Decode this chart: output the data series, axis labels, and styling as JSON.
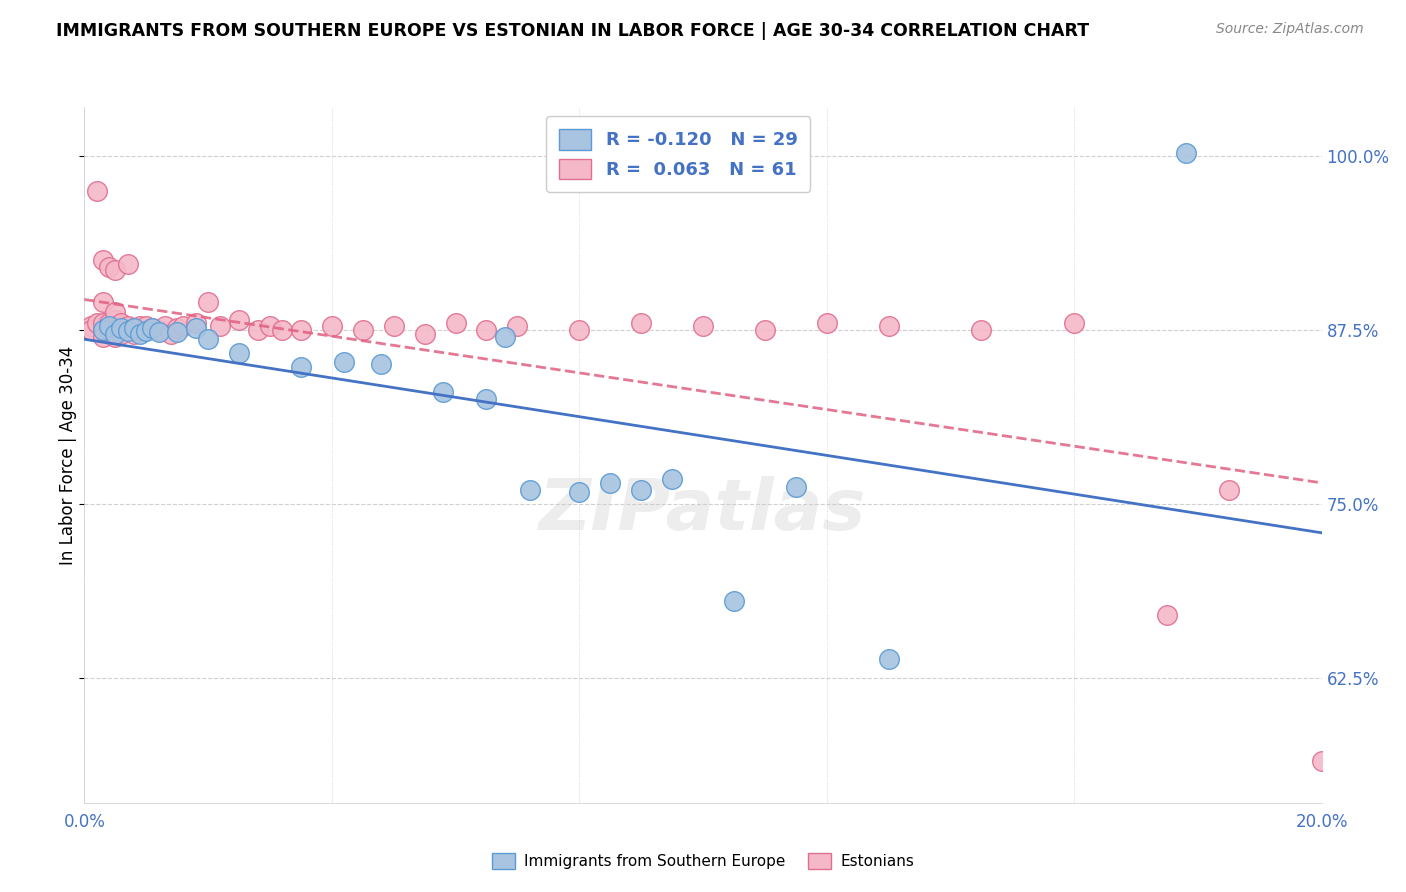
{
  "title": "IMMIGRANTS FROM SOUTHERN EUROPE VS ESTONIAN IN LABOR FORCE | AGE 30-34 CORRELATION CHART",
  "source": "Source: ZipAtlas.com",
  "ylabel": "In Labor Force | Age 30-34",
  "xlim": [
    0.0,
    0.2
  ],
  "ylim": [
    0.535,
    1.035
  ],
  "xticks": [
    0.0,
    0.04,
    0.08,
    0.12,
    0.16,
    0.2
  ],
  "xtick_labels": [
    "0.0%",
    "",
    "",
    "",
    "",
    "20.0%"
  ],
  "ytick_labels_right": [
    "62.5%",
    "75.0%",
    "87.5%",
    "100.0%"
  ],
  "ytick_vals_right": [
    0.625,
    0.75,
    0.875,
    1.0
  ],
  "legend_R_blue": "-0.120",
  "legend_N_blue": "29",
  "legend_R_pink": "0.063",
  "legend_N_pink": "61",
  "blue_fill": "#a8c4e0",
  "blue_edge": "#5b9bd5",
  "pink_fill": "#f4b8c8",
  "pink_edge": "#e07090",
  "trend_blue_color": "#4472c4",
  "trend_pink_color": "#e06080",
  "blue_scatter_x": [
    0.003,
    0.004,
    0.005,
    0.006,
    0.007,
    0.008,
    0.009,
    0.01,
    0.011,
    0.012,
    0.015,
    0.018,
    0.02,
    0.025,
    0.035,
    0.042,
    0.048,
    0.058,
    0.065,
    0.068,
    0.072,
    0.08,
    0.085,
    0.09,
    0.095,
    0.105,
    0.115,
    0.13,
    0.178
  ],
  "blue_scatter_y": [
    0.875,
    0.878,
    0.872,
    0.876,
    0.874,
    0.876,
    0.872,
    0.874,
    0.876,
    0.873,
    0.873,
    0.876,
    0.868,
    0.858,
    0.848,
    0.852,
    0.85,
    0.83,
    0.825,
    0.87,
    0.76,
    0.758,
    0.765,
    0.76,
    0.768,
    0.68,
    0.762,
    0.638,
    1.002
  ],
  "pink_scatter_x": [
    0.001,
    0.001,
    0.002,
    0.002,
    0.003,
    0.003,
    0.003,
    0.003,
    0.003,
    0.004,
    0.004,
    0.004,
    0.005,
    0.005,
    0.005,
    0.005,
    0.005,
    0.006,
    0.006,
    0.006,
    0.007,
    0.007,
    0.007,
    0.008,
    0.008,
    0.009,
    0.009,
    0.01,
    0.01,
    0.011,
    0.012,
    0.013,
    0.014,
    0.015,
    0.016,
    0.018,
    0.02,
    0.022,
    0.025,
    0.028,
    0.03,
    0.032,
    0.035,
    0.04,
    0.045,
    0.05,
    0.055,
    0.06,
    0.065,
    0.07,
    0.08,
    0.09,
    0.1,
    0.11,
    0.12,
    0.13,
    0.145,
    0.16,
    0.175,
    0.185,
    0.2
  ],
  "pink_scatter_y": [
    0.878,
    0.875,
    0.975,
    0.88,
    0.875,
    0.88,
    0.87,
    0.925,
    0.895,
    0.875,
    0.88,
    0.92,
    0.87,
    0.878,
    0.882,
    0.918,
    0.888,
    0.872,
    0.878,
    0.88,
    0.875,
    0.878,
    0.922,
    0.872,
    0.876,
    0.875,
    0.878,
    0.875,
    0.878,
    0.876,
    0.875,
    0.878,
    0.872,
    0.876,
    0.878,
    0.88,
    0.895,
    0.878,
    0.882,
    0.875,
    0.878,
    0.875,
    0.875,
    0.878,
    0.875,
    0.878,
    0.872,
    0.88,
    0.875,
    0.878,
    0.875,
    0.88,
    0.878,
    0.875,
    0.88,
    0.878,
    0.875,
    0.88,
    0.67,
    0.76,
    0.565
  ],
  "background_color": "#ffffff",
  "grid_color": "#d0d0d0"
}
